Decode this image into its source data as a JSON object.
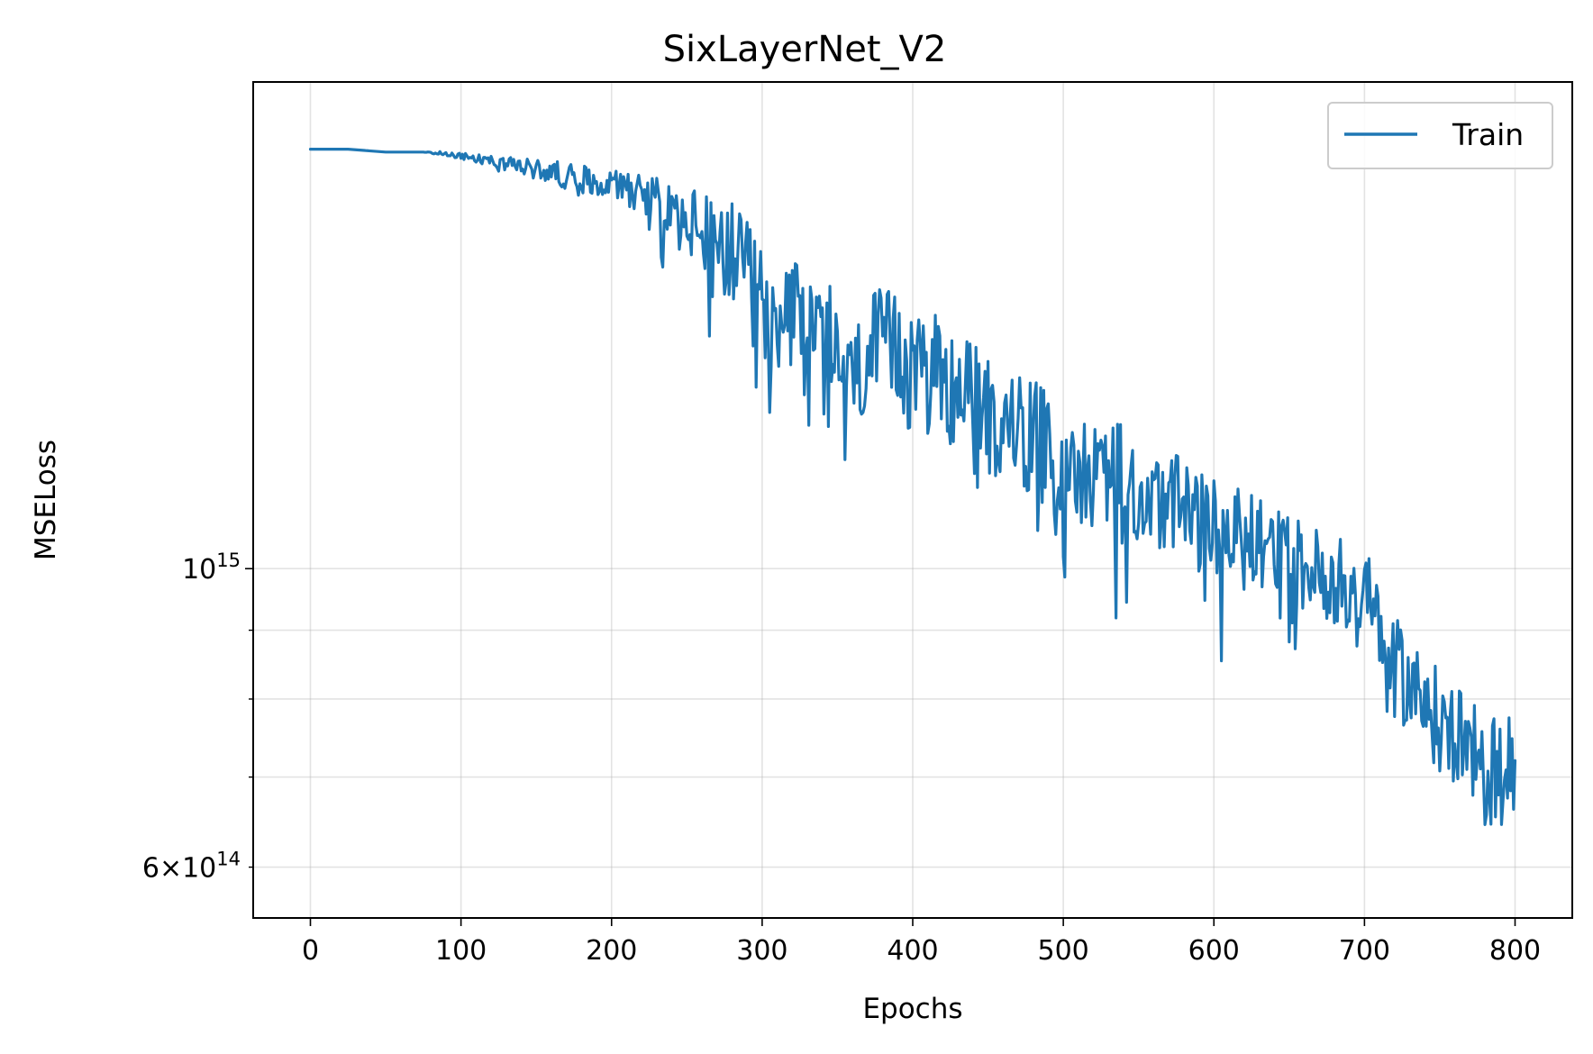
{
  "chart_data": {
    "type": "line",
    "title": "SixLayerNet_V2",
    "xlabel": "Epochs",
    "ylabel": "MSELoss",
    "xlim": [
      -38,
      838
    ],
    "ylim": [
      550000000000000.0,
      2300000000000000.0
    ],
    "yscale": "log",
    "grid": true,
    "legend_position": "upper right",
    "x_ticks": [
      {
        "value": 0,
        "label": "0"
      },
      {
        "value": 100,
        "label": "100"
      },
      {
        "value": 200,
        "label": "200"
      },
      {
        "value": 300,
        "label": "300"
      },
      {
        "value": 400,
        "label": "400"
      },
      {
        "value": 500,
        "label": "500"
      },
      {
        "value": 600,
        "label": "600"
      },
      {
        "value": 700,
        "label": "700"
      },
      {
        "value": 800,
        "label": "800"
      }
    ],
    "y_major_ticks": [
      {
        "value": 1000000000000000.0,
        "base": "10",
        "exp": "15"
      }
    ],
    "y_minor_ticks": [
      {
        "value": 600000000000000.0,
        "mant": "6",
        "base": "10",
        "exp": "14"
      },
      {
        "value": 700000000000000.0
      },
      {
        "value": 800000000000000.0
      },
      {
        "value": 900000000000000.0
      }
    ],
    "series": [
      {
        "name": "Train",
        "color": "#1f77b4",
        "x": [
          0,
          25,
          50,
          75,
          100,
          120,
          140,
          160,
          180,
          200,
          220,
          240,
          260,
          280,
          300,
          320,
          340,
          360,
          380,
          400,
          420,
          440,
          460,
          480,
          500,
          520,
          540,
          560,
          580,
          600,
          620,
          640,
          660,
          680,
          700,
          720,
          740,
          760,
          780,
          800
        ],
        "y": [
          2050000000000000.0,
          2050000000000000.0,
          2040000000000000.0,
          2040000000000000.0,
          2030000000000000.0,
          2010000000000000.0,
          1990000000000000.0,
          1970000000000000.0,
          1950000000000000.0,
          1940000000000000.0,
          1910000000000000.0,
          1850000000000000.0,
          1780000000000000.0,
          1710000000000000.0,
          1580000000000000.0,
          1520000000000000.0,
          1450000000000000.0,
          1430000000000000.0,
          1440000000000000.0,
          1410000000000000.0,
          1380000000000000.0,
          1330000000000000.0,
          1280000000000000.0,
          1250000000000000.0,
          1200000000000000.0,
          1180000000000000.0,
          1160000000000000.0,
          1130000000000000.0,
          1100000000000000.0,
          1070000000000000.0,
          1050000000000000.0,
          1040000000000000.0,
          1000000000000000.0,
          985000000000000.0,
          960000000000000.0,
          850000000000000.0,
          790000000000000.0,
          750000000000000.0,
          705000000000000.0,
          720000000000000.0
        ],
        "noise_amplitude_log10": [
          0,
          0,
          0,
          0,
          0.003,
          0.004,
          0.006,
          0.009,
          0.011,
          0.013,
          0.016,
          0.022,
          0.032,
          0.04,
          0.044,
          0.048,
          0.05,
          0.052,
          0.05,
          0.048,
          0.046,
          0.046,
          0.046,
          0.046,
          0.044,
          0.042,
          0.042,
          0.04,
          0.04,
          0.038,
          0.038,
          0.036,
          0.034,
          0.034,
          0.036,
          0.036,
          0.038,
          0.04,
          0.042,
          0.042
        ],
        "n_points": 801,
        "final_value": 720000000000000.0
      }
    ]
  }
}
